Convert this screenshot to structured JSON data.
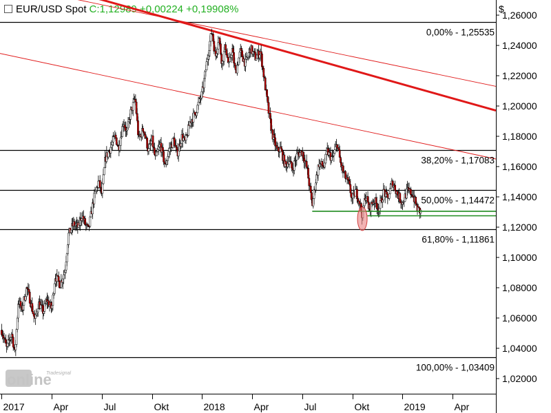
{
  "header": {
    "symbol": "EUR/USD Spot",
    "quote": "C:1,12989 +0,00224 +0,19908%"
  },
  "watermark": {
    "text_top": "Tradesignal",
    "text_main": "online"
  },
  "colors": {
    "up": "#ffffff",
    "down": "#c00000",
    "trend": "#e01818",
    "support": "#1e8a1e",
    "fib": "#000000",
    "highlight": "#e98080"
  },
  "chart_data": {
    "type": "candlestick",
    "currency_label": "$",
    "ylim": [
      1.01,
      1.27
    ],
    "y_ticks": [
      "1,02000",
      "1,04000",
      "1,06000",
      "1,08000",
      "1,10000",
      "1,12000",
      "1,14000",
      "1,16000",
      "1,18000",
      "1,20000",
      "1,22000",
      "1,24000",
      "1,26000"
    ],
    "y_tick_values": [
      1.02,
      1.04,
      1.06,
      1.08,
      1.1,
      1.12,
      1.14,
      1.16,
      1.18,
      1.2,
      1.22,
      1.24,
      1.26
    ],
    "x_labels": [
      "2017",
      "Apr",
      "Jul",
      "Okt",
      "2018",
      "Apr",
      "Jul",
      "Okt",
      "2019",
      "Apr"
    ],
    "x_label_months": [
      0,
      3,
      6,
      9,
      12,
      15,
      18,
      21,
      24,
      27
    ],
    "x_range_months": [
      -0.1,
      29.6
    ],
    "fib_levels": [
      {
        "label": "0,00% - 1,25535",
        "value": 1.25535,
        "from_month": -0.1
      },
      {
        "label": "38,20% - 1,17083",
        "value": 1.17083,
        "from_month": -1.5
      },
      {
        "label": "50,00% - 1,14472",
        "value": 1.14472,
        "from_month": -0.1
      },
      {
        "label": "61,80% - 1,11861",
        "value": 1.11861,
        "from_month": -0.1
      },
      {
        "label": "100,00% - 1,03409",
        "value": 1.03409,
        "from_month": -0.1
      }
    ],
    "trend_lines": [
      {
        "from": [
          5.4,
          1.272
        ],
        "to": [
          29.6,
          1.197
        ],
        "style": "thick"
      },
      {
        "from": [
          -1.5,
          1.284
        ],
        "to": [
          29.6,
          1.213
        ],
        "style": "thin"
      },
      {
        "from": [
          -1.5,
          1.238
        ],
        "to": [
          29.6,
          1.165
        ],
        "style": "thin"
      }
    ],
    "support_lines": [
      {
        "from": [
          18.6,
          1.1305
        ],
        "to": [
          29.6,
          1.1305
        ]
      },
      {
        "from": [
          21.9,
          1.1275
        ],
        "to": [
          29.6,
          1.1275
        ]
      }
    ],
    "highlight": {
      "month": 21.6,
      "value": 1.1255
    },
    "price_path": [
      [
        0.0,
        1.052
      ],
      [
        0.3,
        1.04
      ],
      [
        0.6,
        1.05
      ],
      [
        0.8,
        1.036
      ],
      [
        1.0,
        1.072
      ],
      [
        1.2,
        1.065
      ],
      [
        1.5,
        1.08
      ],
      [
        1.7,
        1.072
      ],
      [
        2.0,
        1.058
      ],
      [
        2.2,
        1.07
      ],
      [
        2.5,
        1.064
      ],
      [
        2.7,
        1.072
      ],
      [
        3.0,
        1.066
      ],
      [
        3.2,
        1.088
      ],
      [
        3.5,
        1.082
      ],
      [
        3.8,
        1.092
      ],
      [
        4.0,
        1.115
      ],
      [
        4.3,
        1.122
      ],
      [
        4.6,
        1.12
      ],
      [
        4.8,
        1.128
      ],
      [
        5.0,
        1.122
      ],
      [
        5.2,
        1.118
      ],
      [
        5.5,
        1.138
      ],
      [
        5.8,
        1.15
      ],
      [
        6.0,
        1.142
      ],
      [
        6.2,
        1.165
      ],
      [
        6.5,
        1.172
      ],
      [
        6.8,
        1.18
      ],
      [
        7.0,
        1.172
      ],
      [
        7.3,
        1.19
      ],
      [
        7.5,
        1.182
      ],
      [
        7.7,
        1.195
      ],
      [
        8.0,
        1.205
      ],
      [
        8.2,
        1.178
      ],
      [
        8.5,
        1.185
      ],
      [
        8.8,
        1.17
      ],
      [
        9.0,
        1.178
      ],
      [
        9.2,
        1.165
      ],
      [
        9.5,
        1.175
      ],
      [
        9.8,
        1.16
      ],
      [
        10.0,
        1.17
      ],
      [
        10.3,
        1.178
      ],
      [
        10.5,
        1.168
      ],
      [
        10.8,
        1.18
      ],
      [
        11.0,
        1.176
      ],
      [
        11.3,
        1.19
      ],
      [
        11.6,
        1.195
      ],
      [
        11.8,
        1.202
      ],
      [
        12.0,
        1.208
      ],
      [
        12.2,
        1.222
      ],
      [
        12.4,
        1.238
      ],
      [
        12.6,
        1.25
      ],
      [
        12.8,
        1.232
      ],
      [
        13.0,
        1.246
      ],
      [
        13.2,
        1.228
      ],
      [
        13.4,
        1.24
      ],
      [
        13.6,
        1.226
      ],
      [
        13.8,
        1.238
      ],
      [
        14.0,
        1.222
      ],
      [
        14.3,
        1.236
      ],
      [
        14.6,
        1.228
      ],
      [
        14.9,
        1.238
      ],
      [
        15.2,
        1.232
      ],
      [
        15.5,
        1.236
      ],
      [
        15.7,
        1.22
      ],
      [
        16.0,
        1.195
      ],
      [
        16.2,
        1.182
      ],
      [
        16.5,
        1.17
      ],
      [
        16.7,
        1.172
      ],
      [
        17.0,
        1.16
      ],
      [
        17.2,
        1.165
      ],
      [
        17.4,
        1.158
      ],
      [
        17.7,
        1.168
      ],
      [
        18.0,
        1.17
      ],
      [
        18.3,
        1.158
      ],
      [
        18.6,
        1.134
      ],
      [
        18.8,
        1.15
      ],
      [
        19.0,
        1.162
      ],
      [
        19.3,
        1.16
      ],
      [
        19.5,
        1.17
      ],
      [
        19.8,
        1.165
      ],
      [
        20.1,
        1.175
      ],
      [
        20.3,
        1.162
      ],
      [
        20.5,
        1.155
      ],
      [
        20.8,
        1.148
      ],
      [
        21.0,
        1.138
      ],
      [
        21.2,
        1.144
      ],
      [
        21.4,
        1.138
      ],
      [
        21.6,
        1.128
      ],
      [
        21.8,
        1.142
      ],
      [
        22.0,
        1.132
      ],
      [
        22.3,
        1.138
      ],
      [
        22.6,
        1.132
      ],
      [
        22.9,
        1.144
      ],
      [
        23.1,
        1.138
      ],
      [
        23.4,
        1.15
      ],
      [
        23.7,
        1.142
      ],
      [
        24.0,
        1.136
      ],
      [
        24.3,
        1.144
      ],
      [
        24.6,
        1.142
      ],
      [
        24.9,
        1.132
      ],
      [
        25.1,
        1.13
      ]
    ]
  }
}
